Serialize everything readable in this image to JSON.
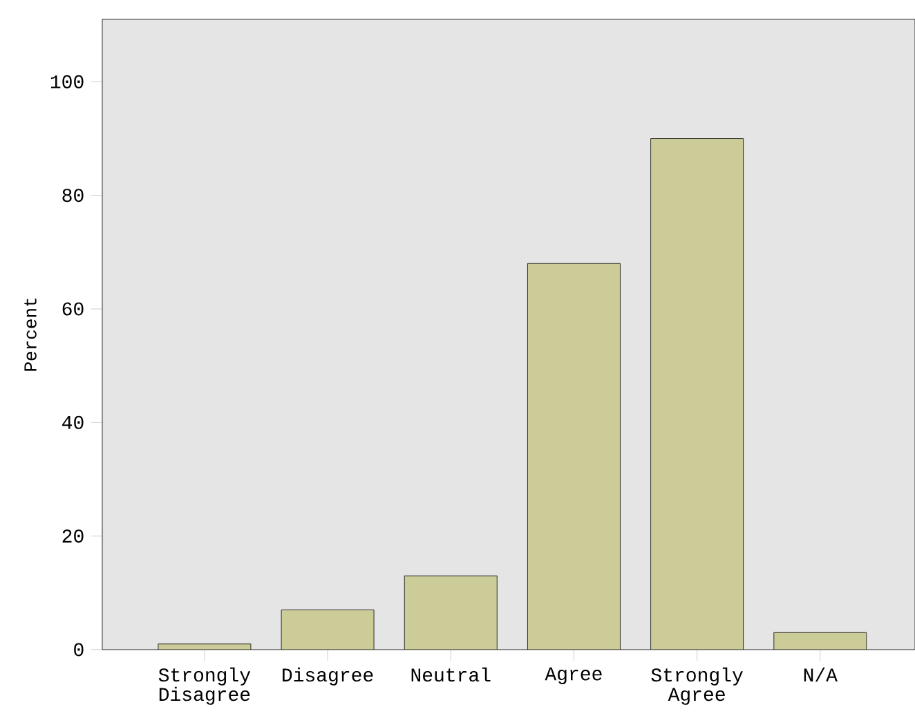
{
  "chart_data": {
    "type": "bar",
    "ylabel": "Percent",
    "categories": [
      "Strongly Disagree",
      "Disagree",
      "Neutral",
      "Agree",
      "Strongly Agree",
      "N/A"
    ],
    "values": [
      1,
      7,
      13,
      68,
      90,
      3
    ],
    "color": "#cccc99",
    "ylim": [
      0,
      111
    ],
    "yticks": [
      0,
      20,
      40,
      60,
      80,
      100
    ],
    "grid": false
  }
}
